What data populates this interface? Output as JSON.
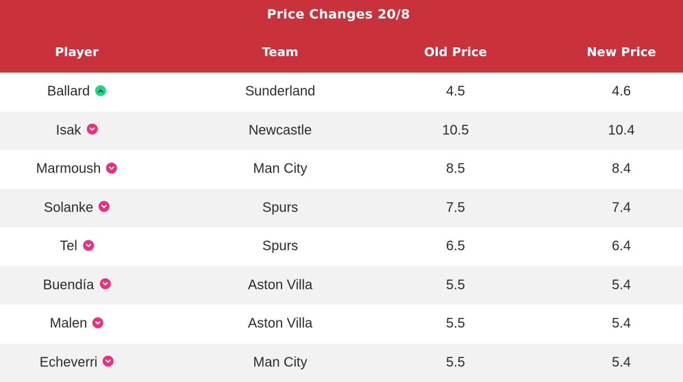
{
  "title": "Price Changes 20/8",
  "colors": {
    "header_bg": "#c9323a",
    "up": "#19d88a",
    "down": "#e8307e"
  },
  "columns": [
    "Player",
    "Team",
    "Old Price",
    "New Price"
  ],
  "rows": [
    {
      "player": "Ballard",
      "direction": "up",
      "team": "Sunderland",
      "old_price": "4.5",
      "new_price": "4.6"
    },
    {
      "player": "Isak",
      "direction": "down",
      "team": "Newcastle",
      "old_price": "10.5",
      "new_price": "10.4"
    },
    {
      "player": "Marmoush",
      "direction": "down",
      "team": "Man City",
      "old_price": "8.5",
      "new_price": "8.4"
    },
    {
      "player": "Solanke",
      "direction": "down",
      "team": "Spurs",
      "old_price": "7.5",
      "new_price": "7.4"
    },
    {
      "player": "Tel",
      "direction": "down",
      "team": "Spurs",
      "old_price": "6.5",
      "new_price": "6.4"
    },
    {
      "player": "Buendía",
      "direction": "down",
      "team": "Aston Villa",
      "old_price": "5.5",
      "new_price": "5.4"
    },
    {
      "player": "Malen",
      "direction": "down",
      "team": "Aston Villa",
      "old_price": "5.5",
      "new_price": "5.4"
    },
    {
      "player": "Echeverri",
      "direction": "down",
      "team": "Man City",
      "old_price": "5.5",
      "new_price": "5.4"
    }
  ]
}
